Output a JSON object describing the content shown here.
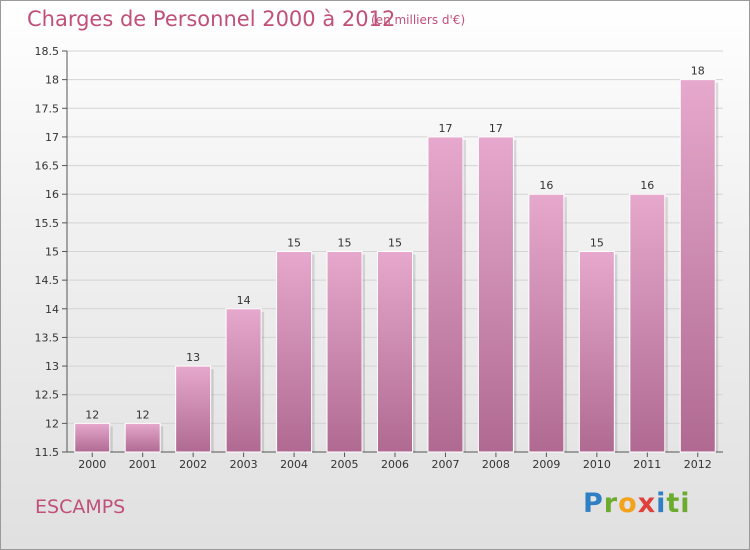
{
  "header": {
    "title": "Charges de Personnel 2000 à 2012",
    "subtitle": "(en milliers d'€)"
  },
  "footer": {
    "city": "ESCAMPS",
    "logo_letters": [
      "P",
      "r",
      "o",
      "x",
      "i",
      "t",
      "i"
    ]
  },
  "colors": {
    "accent": "#c0507a",
    "bar_top": "#e6a8cc",
    "bar_bottom": "#b06a92"
  },
  "chart_data": {
    "type": "bar",
    "title": "Charges de Personnel 2000 à 2012",
    "subtitle": "(en milliers d'€)",
    "categories": [
      "2000",
      "2001",
      "2002",
      "2003",
      "2004",
      "2005",
      "2006",
      "2007",
      "2008",
      "2009",
      "2010",
      "2011",
      "2012"
    ],
    "values": [
      12,
      12,
      13,
      14,
      15,
      15,
      15,
      17,
      17,
      16,
      15,
      16,
      18
    ],
    "value_labels": [
      "12",
      "12",
      "13",
      "14",
      "15",
      "15",
      "15",
      "17",
      "17",
      "16",
      "15",
      "16",
      "18"
    ],
    "ylim": [
      11.5,
      18.5
    ],
    "yticks": [
      11.5,
      12,
      12.5,
      13,
      13.5,
      14,
      14.5,
      15,
      15.5,
      16,
      16.5,
      17,
      17.5,
      18,
      18.5
    ],
    "ytick_labels": [
      "11.5",
      "12",
      "12.5",
      "13",
      "13.5",
      "14",
      "14.5",
      "15",
      "15.5",
      "16",
      "16.5",
      "17",
      "17.5",
      "18",
      "18.5"
    ],
    "grid": true,
    "legend": "none"
  }
}
